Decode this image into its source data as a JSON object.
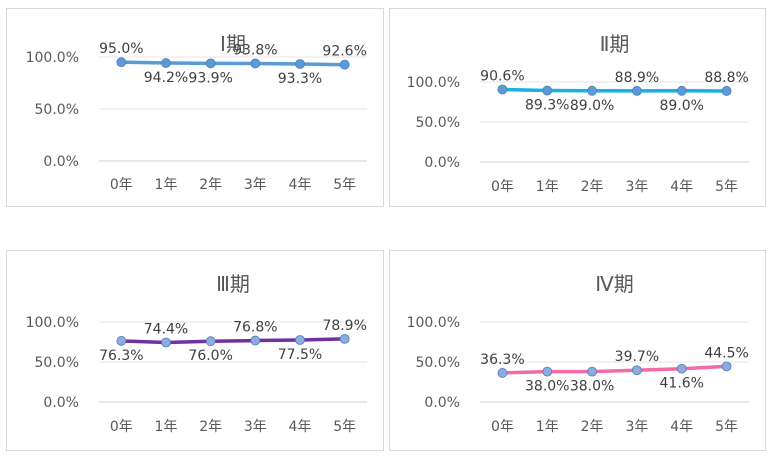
{
  "chart_data": [
    {
      "type": "line",
      "title": "Ⅰ期",
      "categories": [
        "0年",
        "1年",
        "2年",
        "3年",
        "4年",
        "5年"
      ],
      "values": [
        95.0,
        94.2,
        93.9,
        93.8,
        93.3,
        92.6
      ],
      "data_labels": [
        "95.0%",
        "94.2%",
        "93.9%",
        "93.8%",
        "93.3%",
        "92.6%"
      ],
      "label_positions": [
        "above",
        "below",
        "below",
        "above",
        "below",
        "above"
      ],
      "y_ticks": [
        "0.0%",
        "50.0%",
        "100.0%"
      ],
      "ylim": [
        0,
        100
      ],
      "grid": true,
      "line_color": "#5b9bd5",
      "marker_color": "#5b9bd5"
    },
    {
      "type": "line",
      "title": "Ⅱ期",
      "categories": [
        "0年",
        "1年",
        "2年",
        "3年",
        "4年",
        "5年"
      ],
      "values": [
        90.6,
        89.3,
        89.0,
        88.9,
        89.0,
        88.8
      ],
      "data_labels": [
        "90.6%",
        "89.3%",
        "89.0%",
        "88.9%",
        "89.0%",
        "88.8%"
      ],
      "label_positions": [
        "above",
        "below",
        "below",
        "above",
        "below",
        "above"
      ],
      "y_ticks": [
        "0.0%",
        "50.0%",
        "100.0%"
      ],
      "ylim": [
        0,
        100
      ],
      "grid": true,
      "line_color": "#17b0e0",
      "marker_color": "#5b9bd5"
    },
    {
      "type": "line",
      "title": "Ⅲ期",
      "categories": [
        "0年",
        "1年",
        "2年",
        "3年",
        "4年",
        "5年"
      ],
      "values": [
        76.3,
        74.4,
        76.0,
        76.8,
        77.5,
        78.9
      ],
      "data_labels": [
        "76.3%",
        "74.4%",
        "76.0%",
        "76.8%",
        "77.5%",
        "78.9%"
      ],
      "label_positions": [
        "below",
        "above",
        "below",
        "above",
        "below",
        "above"
      ],
      "y_ticks": [
        "0.0%",
        "50.0%",
        "100.0%"
      ],
      "ylim": [
        0,
        100
      ],
      "grid": true,
      "line_color": "#7030a0",
      "marker_color": "#8faadc"
    },
    {
      "type": "line",
      "title": "Ⅳ期",
      "categories": [
        "0年",
        "1年",
        "2年",
        "3年",
        "4年",
        "5年"
      ],
      "values": [
        36.3,
        38.0,
        38.0,
        39.7,
        41.6,
        44.5
      ],
      "data_labels": [
        "36.3%",
        "38.0%",
        "38.0%",
        "39.7%",
        "41.6%",
        "44.5%"
      ],
      "label_positions": [
        "above",
        "below",
        "below",
        "above",
        "below",
        "above"
      ],
      "y_ticks": [
        "0.0%",
        "50.0%",
        "100.0%"
      ],
      "ylim": [
        0,
        100
      ],
      "grid": true,
      "line_color": "#f06ba8",
      "marker_color": "#8faadc"
    }
  ]
}
